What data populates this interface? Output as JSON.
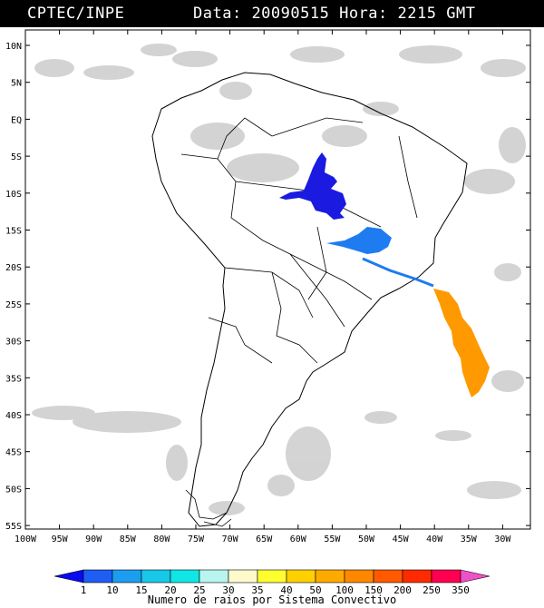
{
  "header": {
    "institution": "CPTEC/INPE",
    "date_label": "Data:",
    "date": "20090515",
    "time_label": "Hora:",
    "time": "2215",
    "timezone": "GMT"
  },
  "map": {
    "lat_labels": [
      "10N",
      "5N",
      "EQ",
      "5S",
      "10S",
      "15S",
      "20S",
      "25S",
      "30S",
      "35S",
      "40S",
      "45S",
      "50S",
      "55S"
    ],
    "lon_labels": [
      "100W",
      "95W",
      "90W",
      "85W",
      "80W",
      "75W",
      "70W",
      "65W",
      "60W",
      "55W",
      "50W",
      "45W",
      "40W",
      "35W",
      "30W"
    ],
    "lightning_systems": [
      {
        "name": "para-mato-grosso",
        "color": "#1a1ae0",
        "category": "1-10"
      },
      {
        "name": "minas-goias",
        "color": "#1e7bf0",
        "category": "10-15"
      },
      {
        "name": "south-atlantic",
        "color": "#ff9900",
        "category": "50-100"
      }
    ]
  },
  "colorbar": {
    "values": [
      "1",
      "10",
      "15",
      "20",
      "25",
      "30",
      "35",
      "40",
      "50",
      "100",
      "150",
      "200",
      "250",
      "350"
    ],
    "colors": [
      "#0a0af0",
      "#1e5ef5",
      "#1c9ef0",
      "#18c8e8",
      "#10e6e6",
      "#b8f5f0",
      "#fffacc",
      "#ffff30",
      "#ffd000",
      "#ffaa00",
      "#ff8800",
      "#ff5a00",
      "#ff2a00",
      "#ff0050",
      "#f050c8"
    ],
    "caption": "Numero de raios por Sistema Convectivo"
  }
}
